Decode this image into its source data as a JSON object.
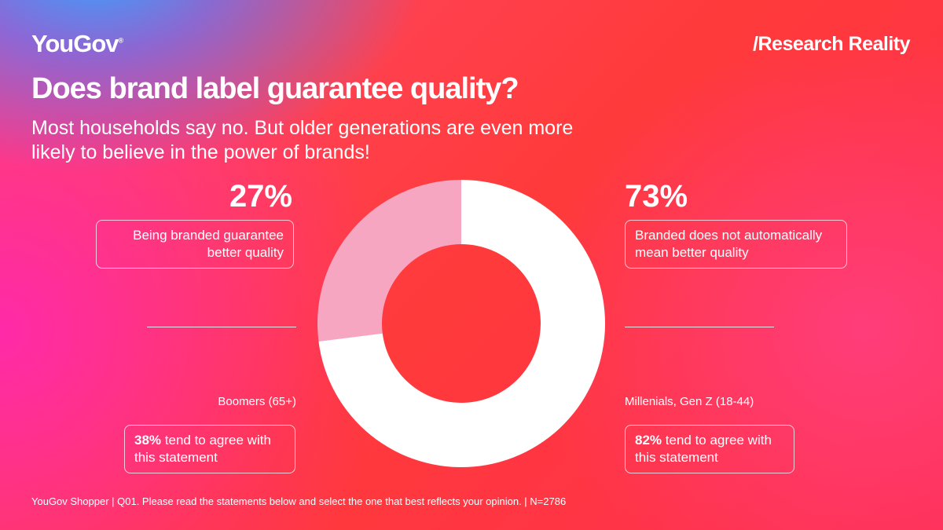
{
  "brand": {
    "logo": "YouGov",
    "logo_mark": "®",
    "series_name": "/Research Reality"
  },
  "chart_data": {
    "type": "donut",
    "title": "Does brand label guarantee quality?",
    "subtitle": "Most households say no. But older generations are even more likely to believe in the power of brands!",
    "categories": [
      "Being branded guarantee better quality",
      "Branded does not automatically mean better quality"
    ],
    "values": [
      27,
      73
    ],
    "value_labels": [
      "27%",
      "73%"
    ],
    "colors": [
      "#f7a6c1",
      "#ffffff"
    ]
  },
  "callouts": [
    {
      "group": "Boomers (65+)",
      "highlight": "38%",
      "text": "tend to agree with this statement"
    },
    {
      "group": "Millenials, Gen Z (18-44)",
      "highlight": "82%",
      "text": "tend to agree with this statement"
    }
  ],
  "footer": "YouGov Shopper | Q01. Please read the statements below and select the one that best reflects your opinion. | N=2786"
}
